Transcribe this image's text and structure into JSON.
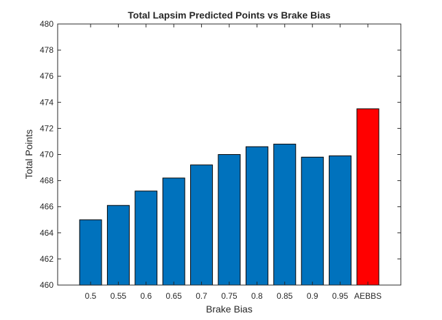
{
  "chart_data": {
    "type": "bar",
    "title": "Total Lapsim Predicted Points vs Brake Bias",
    "xlabel": "Brake Bias",
    "ylabel": "Total Points",
    "categories": [
      "0.5",
      "0.55",
      "0.6",
      "0.65",
      "0.7",
      "0.75",
      "0.8",
      "0.85",
      "0.9",
      "0.95",
      "AEBBS"
    ],
    "values": [
      465.0,
      466.1,
      467.2,
      468.2,
      469.2,
      470.0,
      470.6,
      470.8,
      469.8,
      469.9,
      473.5
    ],
    "ylim": [
      460,
      480
    ],
    "yticks": [
      "460",
      "462",
      "464",
      "466",
      "468",
      "470",
      "472",
      "474",
      "476",
      "478",
      "480"
    ],
    "bar_color": "#0072BD",
    "highlight_color": "#FF0000",
    "highlight_category": "AEBBS",
    "grid": false,
    "legend": "none"
  }
}
